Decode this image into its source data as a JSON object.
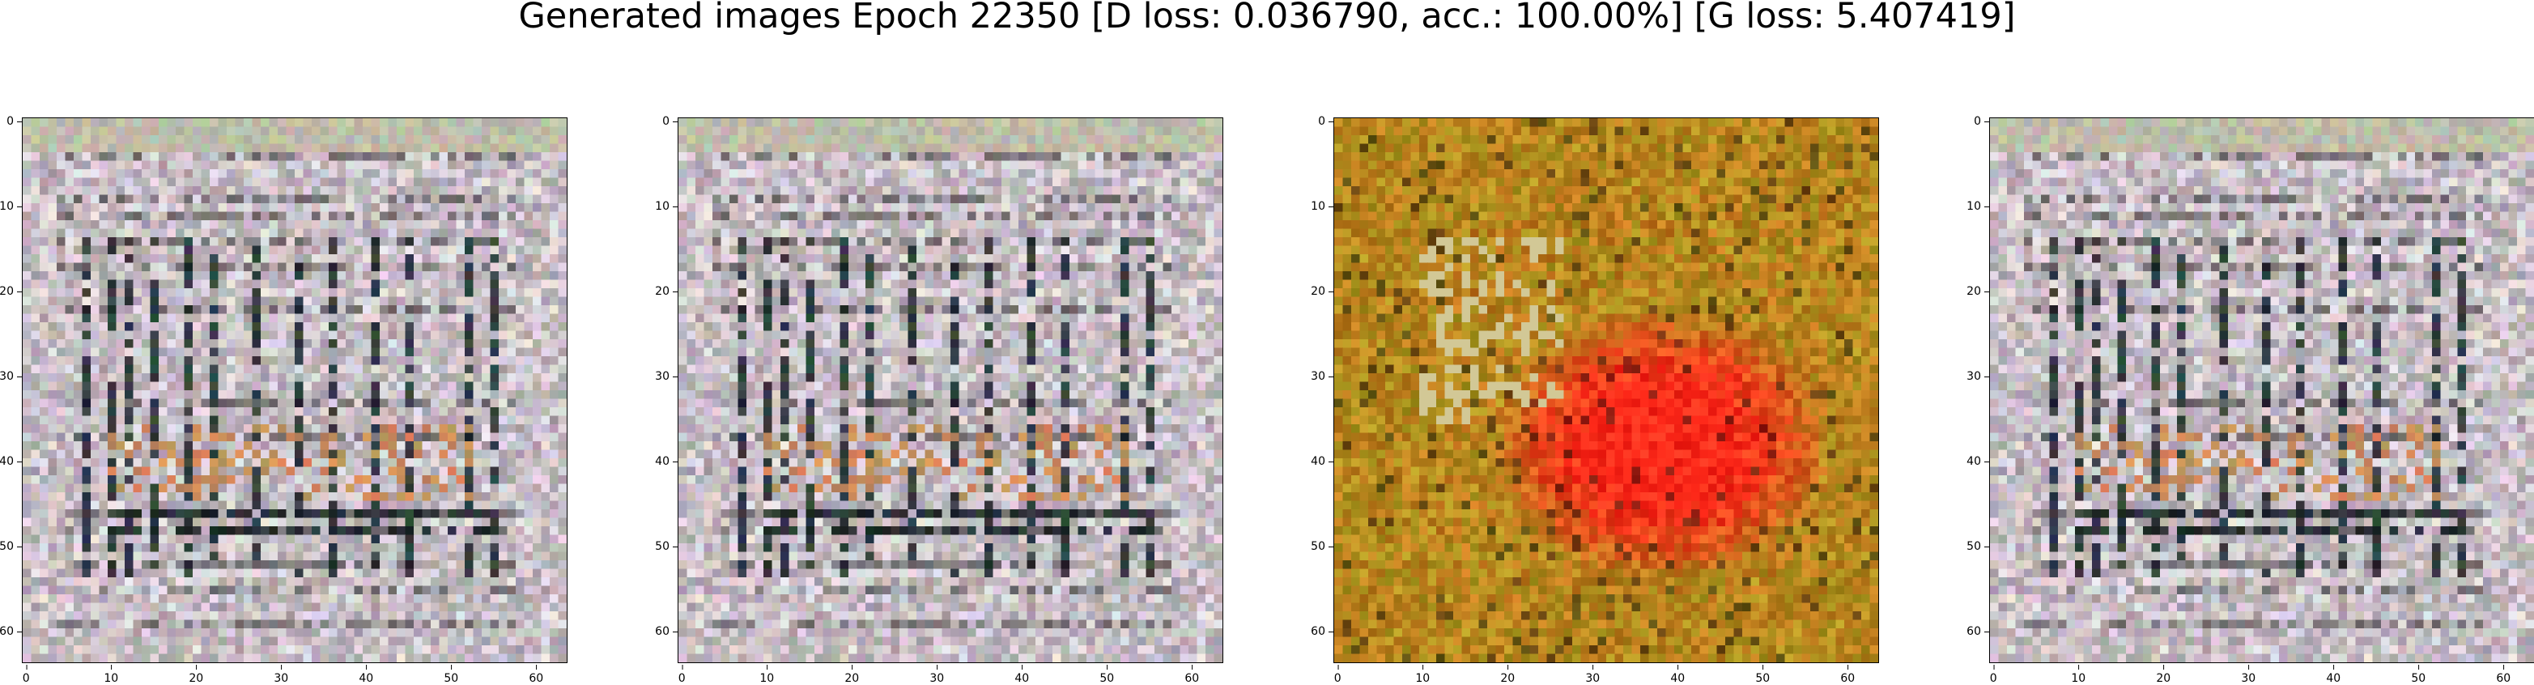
{
  "figure": {
    "title": "Generated images Epoch 22350 [D loss: 0.036790, acc.: 100.00%] [G loss: 5.407419]"
  },
  "axis_ticks": {
    "x": [
      "0",
      "10",
      "20",
      "30",
      "40",
      "50",
      "60"
    ],
    "y": [
      "0",
      "10",
      "20",
      "30",
      "40",
      "50",
      "60"
    ]
  },
  "image_size": 64,
  "panels": [
    {
      "variant": "gray-grid"
    },
    {
      "variant": "gray-grid"
    },
    {
      "variant": "orange-red"
    },
    {
      "variant": "gray-grid"
    }
  ],
  "colors": {
    "gray_base": "#c8bfc6",
    "dark_grid": "#1e2a2e",
    "orange_base": "#b8861e",
    "red_hot": "#ff2a1a"
  }
}
